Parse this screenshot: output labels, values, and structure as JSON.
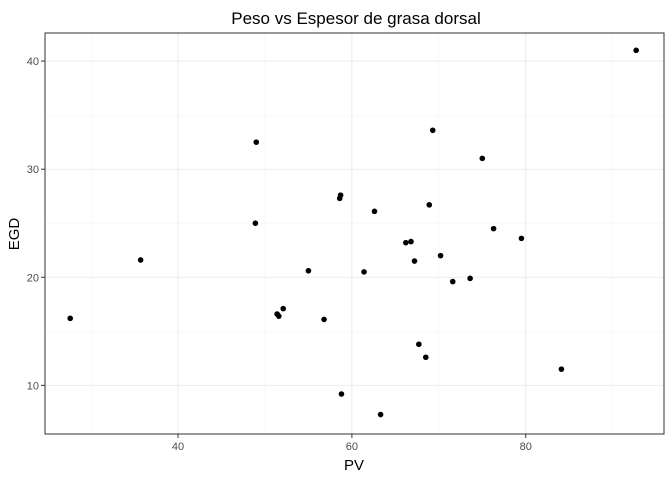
{
  "chart_data": {
    "type": "scatter",
    "title": "Peso vs  Espesor de grasa dorsal",
    "xlabel": "PV",
    "ylabel": "EGD",
    "xlim": [
      24.7,
      95.9
    ],
    "ylim": [
      5.5,
      42.6
    ],
    "x_ticks": [
      40,
      60,
      80
    ],
    "y_ticks": [
      10,
      20,
      30,
      40
    ],
    "x_minor_ticks": [
      30,
      50,
      70,
      90
    ],
    "y_minor_ticks": [
      15,
      25,
      35
    ],
    "grid": true,
    "legend": "none",
    "point_color": "#000000",
    "points": [
      {
        "x": 27.6,
        "y": 16.2
      },
      {
        "x": 35.7,
        "y": 21.6
      },
      {
        "x": 49.0,
        "y": 32.5
      },
      {
        "x": 48.9,
        "y": 25.0
      },
      {
        "x": 51.4,
        "y": 16.6
      },
      {
        "x": 51.6,
        "y": 16.4
      },
      {
        "x": 52.1,
        "y": 17.1
      },
      {
        "x": 55.0,
        "y": 20.6
      },
      {
        "x": 56.8,
        "y": 16.1
      },
      {
        "x": 58.6,
        "y": 27.3
      },
      {
        "x": 58.7,
        "y": 27.6
      },
      {
        "x": 58.8,
        "y": 9.2
      },
      {
        "x": 61.4,
        "y": 20.5
      },
      {
        "x": 62.6,
        "y": 26.1
      },
      {
        "x": 63.3,
        "y": 7.3
      },
      {
        "x": 66.2,
        "y": 23.2
      },
      {
        "x": 66.8,
        "y": 23.3
      },
      {
        "x": 67.2,
        "y": 21.5
      },
      {
        "x": 67.7,
        "y": 13.8
      },
      {
        "x": 68.5,
        "y": 12.6
      },
      {
        "x": 68.9,
        "y": 26.7
      },
      {
        "x": 69.3,
        "y": 33.6
      },
      {
        "x": 70.2,
        "y": 22.0
      },
      {
        "x": 71.6,
        "y": 19.6
      },
      {
        "x": 73.6,
        "y": 19.9
      },
      {
        "x": 75.0,
        "y": 31.0
      },
      {
        "x": 76.3,
        "y": 24.5
      },
      {
        "x": 79.5,
        "y": 23.6
      },
      {
        "x": 84.1,
        "y": 11.5
      },
      {
        "x": 92.7,
        "y": 41.0
      }
    ]
  }
}
